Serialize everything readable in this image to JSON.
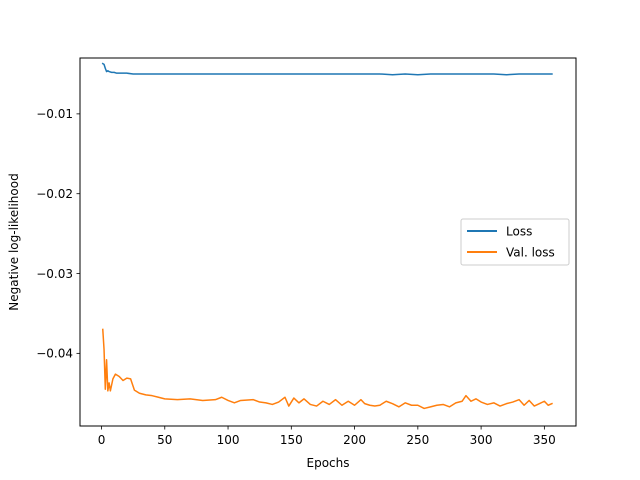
{
  "chart_data": {
    "type": "line",
    "title": "",
    "xlabel": "Epochs",
    "ylabel": "Negative log-likelihood",
    "xlim": [
      -17,
      375
    ],
    "ylim": [
      -0.0491,
      -0.003
    ],
    "xticks": [
      0,
      50,
      100,
      150,
      200,
      250,
      300,
      350
    ],
    "xtick_labels": [
      "0",
      "50",
      "100",
      "150",
      "200",
      "250",
      "300",
      "350"
    ],
    "yticks": [
      -0.04,
      -0.03,
      -0.02,
      -0.01
    ],
    "ytick_labels": [
      "−0.04",
      "−0.03",
      "−0.02",
      "−0.01"
    ],
    "grid": false,
    "legend_position": "center-right",
    "series": [
      {
        "name": "Loss",
        "color": "#1f77b4",
        "points": [
          [
            1,
            -0.0037
          ],
          [
            2,
            -0.0038
          ],
          [
            3,
            -0.0043
          ],
          [
            4,
            -0.0047
          ],
          [
            5,
            -0.0046
          ],
          [
            6,
            -0.0047
          ],
          [
            8,
            -0.0048
          ],
          [
            10,
            -0.0048
          ],
          [
            12,
            -0.0049
          ],
          [
            15,
            -0.0049
          ],
          [
            20,
            -0.0049
          ],
          [
            25,
            -0.005
          ],
          [
            30,
            -0.005
          ],
          [
            40,
            -0.005
          ],
          [
            50,
            -0.005
          ],
          [
            60,
            -0.005
          ],
          [
            70,
            -0.005
          ],
          [
            80,
            -0.005
          ],
          [
            90,
            -0.005
          ],
          [
            100,
            -0.005
          ],
          [
            110,
            -0.005
          ],
          [
            120,
            -0.005
          ],
          [
            130,
            -0.005
          ],
          [
            140,
            -0.005
          ],
          [
            150,
            -0.005
          ],
          [
            160,
            -0.005
          ],
          [
            170,
            -0.005
          ],
          [
            180,
            -0.005
          ],
          [
            190,
            -0.005
          ],
          [
            200,
            -0.005
          ],
          [
            210,
            -0.005
          ],
          [
            220,
            -0.005
          ],
          [
            230,
            -0.0051
          ],
          [
            240,
            -0.005
          ],
          [
            250,
            -0.0051
          ],
          [
            260,
            -0.005
          ],
          [
            270,
            -0.005
          ],
          [
            280,
            -0.005
          ],
          [
            290,
            -0.005
          ],
          [
            300,
            -0.005
          ],
          [
            310,
            -0.005
          ],
          [
            320,
            -0.0051
          ],
          [
            330,
            -0.005
          ],
          [
            340,
            -0.005
          ],
          [
            350,
            -0.005
          ],
          [
            356,
            -0.005
          ]
        ]
      },
      {
        "name": "Val. loss",
        "color": "#ff7f0e",
        "points": [
          [
            1,
            -0.037
          ],
          [
            2,
            -0.0395
          ],
          [
            3,
            -0.0445
          ],
          [
            4,
            -0.0408
          ],
          [
            5,
            -0.0447
          ],
          [
            6,
            -0.0437
          ],
          [
            7,
            -0.0447
          ],
          [
            9,
            -0.0432
          ],
          [
            11,
            -0.0426
          ],
          [
            14,
            -0.0429
          ],
          [
            17,
            -0.0434
          ],
          [
            20,
            -0.0431
          ],
          [
            23,
            -0.0432
          ],
          [
            26,
            -0.0446
          ],
          [
            30,
            -0.045
          ],
          [
            35,
            -0.0452
          ],
          [
            40,
            -0.0453
          ],
          [
            45,
            -0.0455
          ],
          [
            50,
            -0.0457
          ],
          [
            60,
            -0.0458
          ],
          [
            70,
            -0.0457
          ],
          [
            80,
            -0.0459
          ],
          [
            90,
            -0.0458
          ],
          [
            95,
            -0.0455
          ],
          [
            100,
            -0.0459
          ],
          [
            105,
            -0.0462
          ],
          [
            110,
            -0.0459
          ],
          [
            120,
            -0.0458
          ],
          [
            125,
            -0.0461
          ],
          [
            130,
            -0.0462
          ],
          [
            135,
            -0.0464
          ],
          [
            140,
            -0.0461
          ],
          [
            145,
            -0.0455
          ],
          [
            148,
            -0.0466
          ],
          [
            152,
            -0.0456
          ],
          [
            156,
            -0.0462
          ],
          [
            160,
            -0.0457
          ],
          [
            165,
            -0.0464
          ],
          [
            170,
            -0.0466
          ],
          [
            175,
            -0.046
          ],
          [
            180,
            -0.0464
          ],
          [
            185,
            -0.0458
          ],
          [
            190,
            -0.0465
          ],
          [
            195,
            -0.046
          ],
          [
            200,
            -0.0465
          ],
          [
            205,
            -0.0458
          ],
          [
            208,
            -0.0463
          ],
          [
            212,
            -0.0465
          ],
          [
            216,
            -0.0466
          ],
          [
            220,
            -0.0465
          ],
          [
            225,
            -0.046
          ],
          [
            230,
            -0.0463
          ],
          [
            235,
            -0.0467
          ],
          [
            240,
            -0.0462
          ],
          [
            245,
            -0.0465
          ],
          [
            250,
            -0.0465
          ],
          [
            255,
            -0.0469
          ],
          [
            260,
            -0.0467
          ],
          [
            265,
            -0.0465
          ],
          [
            270,
            -0.0464
          ],
          [
            275,
            -0.0467
          ],
          [
            280,
            -0.0462
          ],
          [
            285,
            -0.046
          ],
          [
            288,
            -0.0453
          ],
          [
            292,
            -0.046
          ],
          [
            296,
            -0.0457
          ],
          [
            300,
            -0.0461
          ],
          [
            305,
            -0.0464
          ],
          [
            310,
            -0.0462
          ],
          [
            315,
            -0.0466
          ],
          [
            320,
            -0.0463
          ],
          [
            325,
            -0.0461
          ],
          [
            330,
            -0.0458
          ],
          [
            334,
            -0.0465
          ],
          [
            338,
            -0.0459
          ],
          [
            342,
            -0.0466
          ],
          [
            346,
            -0.0463
          ],
          [
            350,
            -0.046
          ],
          [
            353,
            -0.0465
          ],
          [
            356,
            -0.0463
          ]
        ]
      }
    ]
  }
}
